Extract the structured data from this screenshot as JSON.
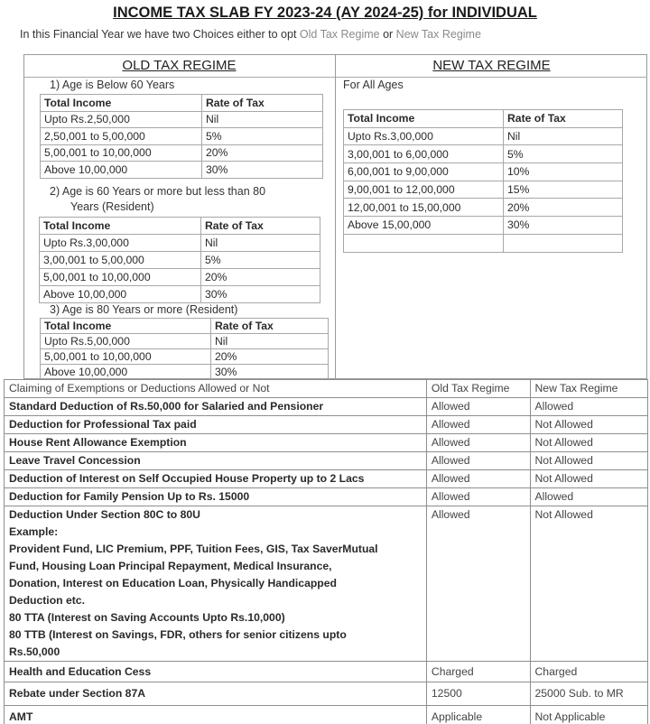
{
  "title": "INCOME TAX SLAB FY 2023-24 (AY 2024-25) for INDIVIDUAL",
  "subtitle": {
    "prefix": "In this Financial Year we have two Choices either to opt ",
    "old": "Old Tax Regime",
    "mid": " or ",
    "new": "New Tax Regime"
  },
  "old_regime": {
    "heading": "OLD TAX REGIME",
    "groups": [
      {
        "label": "1)  Age is Below 60 Years",
        "headers": [
          "Total Income",
          "Rate of Tax"
        ],
        "rows": [
          [
            "Upto Rs.2,50,000",
            "Nil"
          ],
          [
            "2,50,001 to 5,00,000",
            "5%"
          ],
          [
            "5,00,001 to 10,00,000",
            "20%"
          ],
          [
            "Above 10,00,000",
            "30%"
          ]
        ]
      },
      {
        "label": "2)  Age is 60 Years or more but less than 80",
        "label2": "Years (Resident)",
        "headers": [
          "Total Income",
          "Rate of Tax"
        ],
        "rows": [
          [
            "Upto Rs.3,00,000",
            "Nil"
          ],
          [
            "3,00,001 to 5,00,000",
            "5%"
          ],
          [
            "5,00,001 to 10,00,000",
            "20%"
          ],
          [
            "Above 10,00,000",
            "30%"
          ]
        ]
      },
      {
        "label": "3)  Age is 80 Years or more (Resident)",
        "headers": [
          "Total Income",
          "Rate of Tax"
        ],
        "rows": [
          [
            "Upto Rs.5,00,000",
            "Nil"
          ],
          [
            "5,00,001 to 10,00,000",
            "20%"
          ],
          [
            "Above 10,00,000",
            "30%"
          ]
        ]
      }
    ]
  },
  "new_regime": {
    "heading": "NEW TAX REGIME",
    "label": "For All Ages",
    "headers": [
      "Total Income",
      "Rate of Tax"
    ],
    "rows": [
      [
        "Upto Rs.3,00,000",
        "Nil"
      ],
      [
        "3,00,001 to 6,00,000",
        "5%"
      ],
      [
        "6,00,001 to 9,00,000",
        "10%"
      ],
      [
        "9,00,001 to 12,00,000",
        "15%"
      ],
      [
        "12,00,001 to 15,00,000",
        "20%"
      ],
      [
        "Above 15,00,000",
        "30%"
      ],
      [
        "",
        ""
      ]
    ]
  },
  "comparison": {
    "headers": [
      "Claiming of Exemptions or Deductions Allowed or Not",
      "Old Tax Regime",
      "New Tax Regime"
    ],
    "rows": [
      {
        "item": [
          "Standard Deduction of Rs.50,000 for Salaried and Pensioner"
        ],
        "old": "Allowed",
        "new": "Allowed"
      },
      {
        "item": [
          "Deduction for Professional Tax paid"
        ],
        "old": "Allowed",
        "new": "Not Allowed"
      },
      {
        "item": [
          "House Rent Allowance Exemption"
        ],
        "old": "Allowed",
        "new": "Not Allowed"
      },
      {
        "item": [
          "Leave Travel Concession"
        ],
        "old": "Allowed",
        "new": "Not Allowed"
      },
      {
        "item": [
          "Deduction of Interest on Self Occupied House Property up to 2 Lacs"
        ],
        "old": "Allowed",
        "new": "Not Allowed"
      },
      {
        "item": [
          "Deduction for Family Pension Up to Rs. 15000"
        ],
        "old": "Allowed",
        "new": "Allowed"
      },
      {
        "item": [
          "Deduction Under Section 80C to 80U",
          "Example:",
          "Provident Fund, LIC Premium, PPF, Tuition Fees, GIS, Tax SaverMutual",
          "Fund, Housing Loan Principal Repayment, Medical Insurance,",
          "Donation, Interest on Education Loan, Physically Handicapped",
          "Deduction etc.",
          "80 TTA (Interest on Saving Accounts Upto Rs.10,000)",
          "80 TTB (Interest on Savings, FDR, others for senior citizens upto",
          "Rs.50,000"
        ],
        "old": "Allowed",
        "new": "Not Allowed"
      },
      {
        "item": [
          "Health and Education Cess"
        ],
        "old": "Charged",
        "new": "Charged"
      },
      {
        "item": [
          "Rebate under Section 87A"
        ],
        "old": "12500",
        "new": "25000 Sub. to MR"
      },
      {
        "item": [
          "AMT"
        ],
        "old": "Applicable",
        "new": "Not Applicable"
      }
    ]
  }
}
